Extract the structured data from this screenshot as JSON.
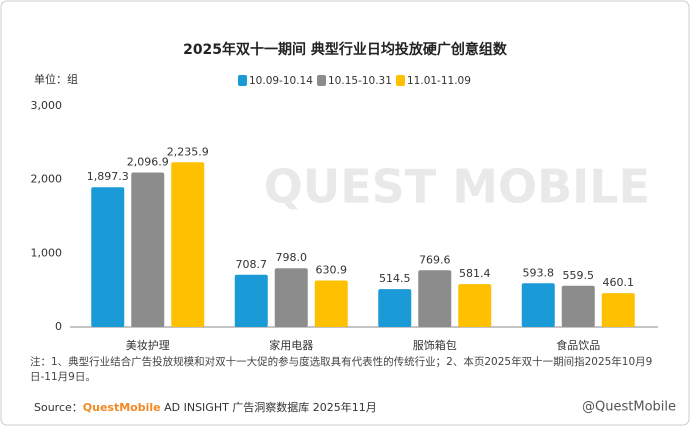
{
  "chart_data": {
    "type": "bar",
    "title": "2025年双十一期间 典型行业日均投放硬广创意组数",
    "unit": "单位：组",
    "categories": [
      "美妆护理",
      "家用电器",
      "服饰箱包",
      "食品饮品"
    ],
    "series": [
      {
        "name": "10.09-10.14",
        "color": "#1a9ad6",
        "values": [
          1897.3,
          708.7,
          514.5,
          593.8
        ],
        "value_labels": [
          "1,897.3",
          "708.7",
          "514.5",
          "593.8"
        ]
      },
      {
        "name": "10.15-10.31",
        "color": "#8c8c8c",
        "values": [
          2096.9,
          798.0,
          769.6,
          559.5
        ],
        "value_labels": [
          "2,096.9",
          "798.0",
          "769.6",
          "559.5"
        ]
      },
      {
        "name": "11.01-11.09",
        "color": "#ffc000",
        "values": [
          2235.9,
          630.9,
          581.4,
          460.1
        ],
        "value_labels": [
          "2,235.9",
          "630.9",
          "581.4",
          "460.1"
        ]
      }
    ],
    "ylim": [
      0,
      3000
    ],
    "yticks": [
      0,
      {
        "value": 1000,
        "label": "1,000"
      },
      {
        "value": 2000,
        "label": "2,000"
      },
      {
        "value": 3000,
        "label": "3,000"
      }
    ],
    "note": "注：1、典型行业结合广告投放规模和对双十一大促的参与度选取具有代表性的传统行业；2、本页2025年双十一期间指2025年10月9日-11月9日。",
    "source": [
      "Source：",
      "QuestMobile",
      " AD INSIGHT 广告洞察数据库 2025年11月"
    ],
    "watermark": "QUEST MOBILE",
    "credit": "@QuestMobile"
  }
}
